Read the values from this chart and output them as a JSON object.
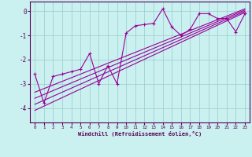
{
  "xlabel": "Windchill (Refroidissement éolien,°C)",
  "background_color": "#caf0f0",
  "line_color": "#990099",
  "xlim": [
    -0.5,
    23.5
  ],
  "ylim": [
    -4.6,
    0.4
  ],
  "yticks": [
    0,
    -1,
    -2,
    -3,
    -4
  ],
  "xticks": [
    0,
    1,
    2,
    3,
    4,
    5,
    6,
    7,
    8,
    9,
    10,
    11,
    12,
    13,
    14,
    15,
    16,
    17,
    18,
    19,
    20,
    21,
    22,
    23
  ],
  "data_x": [
    0,
    1,
    2,
    3,
    4,
    5,
    6,
    7,
    8,
    9,
    10,
    11,
    12,
    13,
    14,
    15,
    16,
    17,
    18,
    19,
    20,
    21,
    22,
    23
  ],
  "data_y": [
    -2.6,
    -3.8,
    -2.7,
    -2.6,
    -2.5,
    -2.4,
    -1.75,
    -3.0,
    -2.25,
    -3.0,
    -0.9,
    -0.6,
    -0.55,
    -0.5,
    0.1,
    -0.65,
    -1.0,
    -0.75,
    -0.1,
    -0.1,
    -0.3,
    -0.3,
    -0.85,
    -0.1
  ],
  "trend_lines": [
    {
      "x0": 0,
      "y0": -4.1,
      "x1": 23,
      "y1": -0.05
    },
    {
      "x0": 0,
      "y0": -3.85,
      "x1": 23,
      "y1": 0.0
    },
    {
      "x0": 0,
      "y0": -3.6,
      "x1": 23,
      "y1": 0.05
    },
    {
      "x0": 0,
      "y0": -3.35,
      "x1": 23,
      "y1": 0.1
    }
  ]
}
